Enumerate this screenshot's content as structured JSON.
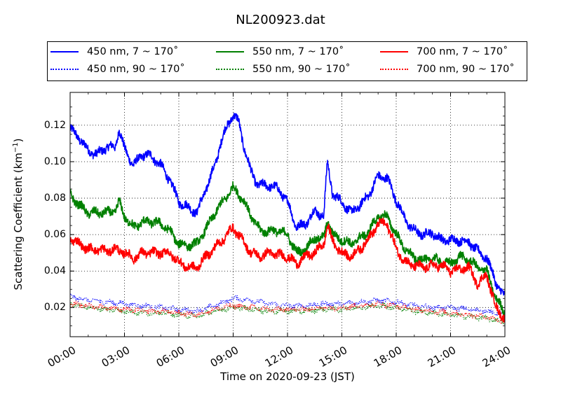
{
  "chart_data": {
    "type": "line",
    "title": "NL200923.dat",
    "xlabel": "Time on 2020-09-23 (JST)",
    "ylabel": "Scattering Coefficient (km",
    "ylabel_exp": "−1",
    "ylabel_close": ")",
    "xlim": [
      0,
      24
    ],
    "ylim": [
      0.004,
      0.138
    ],
    "x_ticks": [
      0,
      3,
      6,
      9,
      12,
      15,
      18,
      21,
      24
    ],
    "x_tick_labels": [
      "00:00",
      "03:00",
      "06:00",
      "09:00",
      "12:00",
      "15:00",
      "18:00",
      "21:00",
      "24:00"
    ],
    "y_ticks": [
      0.02,
      0.04,
      0.06,
      0.08,
      0.1,
      0.12
    ],
    "y_tick_labels": [
      "0.02",
      "0.04",
      "0.06",
      "0.08",
      "0.10",
      "0.12"
    ],
    "grid": true,
    "legend_position": "top",
    "series": [
      {
        "name": "450 nm, 7 ~ 170˚",
        "color": "#0000ff",
        "style": "solid",
        "x": [
          0,
          0.5,
          1,
          1.5,
          2,
          2.5,
          2.7,
          3,
          3.5,
          4,
          4.5,
          5,
          5.5,
          6,
          6.5,
          7,
          7.5,
          8,
          8.3,
          8.6,
          9,
          9.3,
          9.6,
          10,
          10.3,
          10.6,
          11,
          11.5,
          12,
          12.5,
          13,
          13.5,
          14,
          14.2,
          14.5,
          15,
          15.5,
          16,
          16.5,
          17,
          17.5,
          18,
          18.5,
          19,
          19.5,
          20,
          20.5,
          21,
          21.5,
          22,
          22.5,
          23,
          23.5,
          24
        ],
        "y": [
          0.118,
          0.113,
          0.106,
          0.104,
          0.108,
          0.108,
          0.118,
          0.107,
          0.098,
          0.104,
          0.103,
          0.098,
          0.09,
          0.078,
          0.075,
          0.072,
          0.085,
          0.098,
          0.11,
          0.118,
          0.126,
          0.122,
          0.108,
          0.094,
          0.088,
          0.087,
          0.087,
          0.085,
          0.078,
          0.064,
          0.066,
          0.073,
          0.07,
          0.1,
          0.082,
          0.078,
          0.072,
          0.076,
          0.082,
          0.092,
          0.091,
          0.079,
          0.068,
          0.062,
          0.06,
          0.061,
          0.057,
          0.057,
          0.057,
          0.056,
          0.051,
          0.047,
          0.034,
          0.025
        ]
      },
      {
        "name": "450 nm, 90 ~ 170˚",
        "color": "#0000ff",
        "style": "dotted",
        "x": [
          0,
          1,
          2,
          3,
          4,
          5,
          6,
          7,
          8,
          9,
          10,
          11,
          12,
          13,
          14,
          15,
          16,
          17,
          18,
          19,
          20,
          21,
          22,
          23,
          24
        ],
        "y": [
          0.026,
          0.024,
          0.023,
          0.022,
          0.021,
          0.02,
          0.019,
          0.018,
          0.021,
          0.025,
          0.024,
          0.022,
          0.021,
          0.021,
          0.022,
          0.022,
          0.023,
          0.024,
          0.023,
          0.021,
          0.02,
          0.02,
          0.019,
          0.018,
          0.016
        ]
      },
      {
        "name": "550 nm, 7 ~ 170˚",
        "color": "#008000",
        "style": "solid",
        "x": [
          0,
          0.5,
          1,
          1.5,
          2,
          2.5,
          2.7,
          3,
          3.5,
          4,
          4.5,
          5,
          5.5,
          6,
          6.5,
          7,
          7.5,
          8,
          8.5,
          9,
          9.5,
          10,
          10.5,
          11,
          11.5,
          12,
          12.5,
          13,
          13.5,
          14,
          14.2,
          14.5,
          15,
          15.5,
          16,
          16.5,
          17,
          17.5,
          18,
          18.5,
          19,
          19.5,
          20,
          20.5,
          21,
          21.5,
          22,
          22.5,
          23,
          23.5,
          24
        ],
        "y": [
          0.082,
          0.076,
          0.072,
          0.072,
          0.072,
          0.073,
          0.078,
          0.07,
          0.064,
          0.067,
          0.067,
          0.066,
          0.062,
          0.055,
          0.054,
          0.055,
          0.063,
          0.072,
          0.079,
          0.086,
          0.08,
          0.07,
          0.062,
          0.062,
          0.062,
          0.06,
          0.05,
          0.052,
          0.058,
          0.058,
          0.068,
          0.06,
          0.057,
          0.055,
          0.058,
          0.062,
          0.07,
          0.07,
          0.06,
          0.052,
          0.047,
          0.046,
          0.047,
          0.045,
          0.044,
          0.048,
          0.046,
          0.042,
          0.04,
          0.025,
          0.017
        ]
      },
      {
        "name": "550 nm, 90 ~ 170˚",
        "color": "#008000",
        "style": "dotted",
        "x": [
          0,
          1,
          2,
          3,
          4,
          5,
          6,
          7,
          8,
          9,
          10,
          11,
          12,
          13,
          14,
          15,
          16,
          17,
          18,
          19,
          20,
          21,
          22,
          23,
          24
        ],
        "y": [
          0.022,
          0.02,
          0.019,
          0.018,
          0.017,
          0.017,
          0.016,
          0.015,
          0.018,
          0.02,
          0.019,
          0.018,
          0.018,
          0.018,
          0.019,
          0.019,
          0.02,
          0.021,
          0.02,
          0.018,
          0.017,
          0.016,
          0.015,
          0.014,
          0.012
        ]
      },
      {
        "name": "700 nm, 7 ~ 170˚",
        "color": "#ff0000",
        "style": "solid",
        "x": [
          0,
          0.5,
          1,
          1.5,
          2,
          2.5,
          3,
          3.5,
          4,
          4.5,
          5,
          5.5,
          6,
          6.5,
          7,
          7.5,
          8,
          8.5,
          9,
          9.5,
          10,
          10.5,
          11,
          11.5,
          12,
          12.5,
          13,
          13.5,
          14,
          14.2,
          14.5,
          15,
          15.5,
          16,
          16.5,
          17,
          17.5,
          18,
          18.5,
          19,
          19.5,
          20,
          20.5,
          21,
          21.5,
          22,
          22.5,
          23,
          23.5,
          24
        ],
        "y": [
          0.058,
          0.055,
          0.052,
          0.052,
          0.051,
          0.052,
          0.05,
          0.047,
          0.05,
          0.05,
          0.05,
          0.05,
          0.045,
          0.042,
          0.042,
          0.048,
          0.053,
          0.058,
          0.064,
          0.057,
          0.05,
          0.048,
          0.05,
          0.049,
          0.048,
          0.044,
          0.048,
          0.05,
          0.055,
          0.065,
          0.056,
          0.05,
          0.048,
          0.052,
          0.058,
          0.066,
          0.066,
          0.052,
          0.045,
          0.043,
          0.042,
          0.043,
          0.043,
          0.04,
          0.041,
          0.042,
          0.033,
          0.038,
          0.02,
          0.014
        ]
      },
      {
        "name": "700 nm, 90 ~ 170˚",
        "color": "#ff0000",
        "style": "dotted",
        "x": [
          0,
          1,
          2,
          3,
          4,
          5,
          6,
          7,
          8,
          9,
          10,
          11,
          12,
          13,
          14,
          15,
          16,
          17,
          18,
          19,
          20,
          21,
          22,
          23,
          24
        ],
        "y": [
          0.022,
          0.021,
          0.02,
          0.019,
          0.018,
          0.018,
          0.017,
          0.016,
          0.019,
          0.021,
          0.02,
          0.019,
          0.019,
          0.019,
          0.02,
          0.02,
          0.021,
          0.022,
          0.021,
          0.019,
          0.018,
          0.017,
          0.016,
          0.015,
          0.012
        ]
      }
    ]
  }
}
